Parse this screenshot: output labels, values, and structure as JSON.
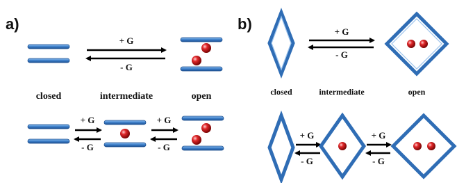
{
  "panels": [
    {
      "label": "a)",
      "top": {
        "forward": "+ G",
        "backward": "- G"
      },
      "states": [
        "closed",
        "intermediate",
        "open"
      ],
      "bottom": [
        {
          "forward": "+ G",
          "backward": "- G"
        },
        {
          "forward": "+ G",
          "backward": "- G"
        }
      ]
    },
    {
      "label": "b)",
      "top": {
        "forward": "+ G",
        "backward": "- G"
      },
      "states": [
        "closed",
        "intermediate",
        "open"
      ],
      "bottom": [
        {
          "forward": "+ G",
          "backward": "- G"
        },
        {
          "forward": "+ G",
          "backward": "- G"
        }
      ]
    }
  ]
}
